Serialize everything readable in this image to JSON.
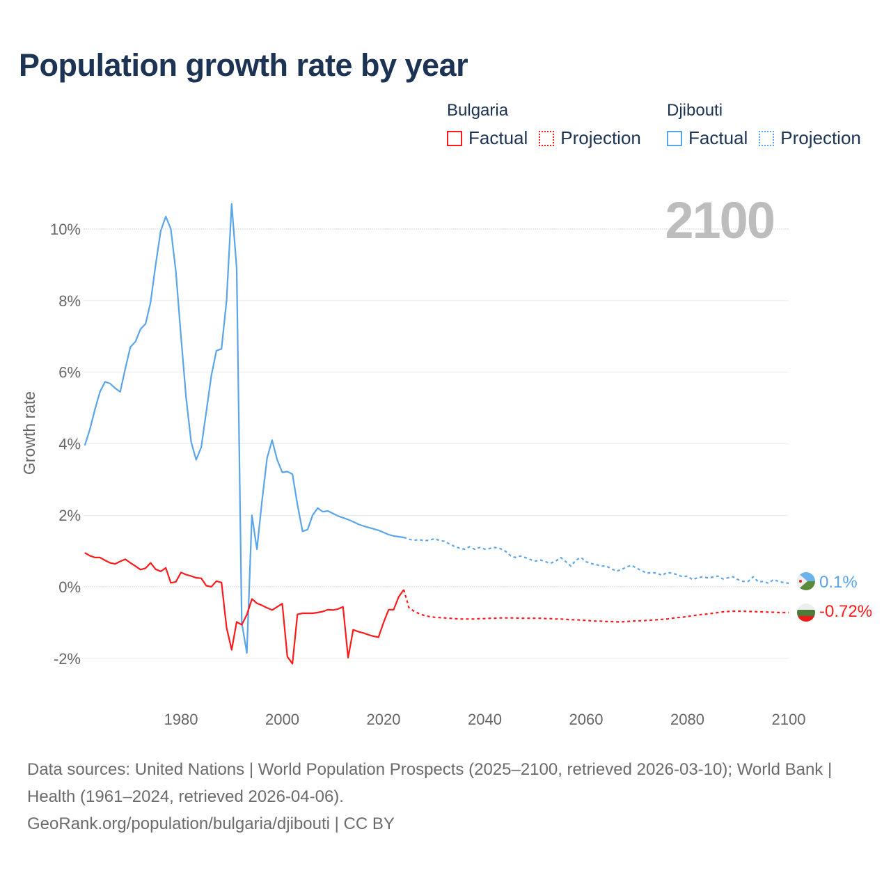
{
  "title": "Population growth rate by year",
  "legend": [
    {
      "country": "Bulgaria",
      "factual": "Factual",
      "projection": "Projection",
      "color": "#ff1a1a"
    },
    {
      "country": "Djibouti",
      "factual": "Factual",
      "projection": "Projection",
      "color": "#5aa5ea"
    }
  ],
  "footer": {
    "sources": "Data sources: United Nations | World Population Prospects (2025–2100, retrieved 2026-03-10); World Bank | Health (1961–2024, retrieved 2026-04-06).",
    "link": "GeoRank.org/population/bulgaria/djibouti | CC BY"
  },
  "chart_data": {
    "type": "line",
    "title": "Population growth rate by year",
    "ylabel": "Growth rate",
    "xlabel": "",
    "year_label": "2100",
    "xlim": [
      1960,
      2100
    ],
    "ylim": [
      -3.0,
      11.0
    ],
    "x_ticks": [
      1980,
      2000,
      2020,
      2040,
      2060,
      2080,
      2100
    ],
    "x_tick_labels": [
      "1980",
      "2000",
      "2020",
      "2040",
      "2060",
      "2080",
      "2100"
    ],
    "y_ticks": [
      -2,
      0,
      2,
      4,
      6,
      8,
      10
    ],
    "y_tick_labels": [
      "-2%",
      "0%",
      "2%",
      "4%",
      "6%",
      "8%",
      "10%"
    ],
    "grid": true,
    "legend_position": "top-right",
    "series": [
      {
        "name": "Djibouti",
        "color": "#5aa5ea",
        "end_label": "0.1%",
        "factual": {
          "x_start": 1961,
          "values": [
            3.95,
            4.4,
            4.95,
            5.45,
            5.73,
            5.68,
            5.55,
            5.45,
            6.1,
            6.7,
            6.85,
            7.2,
            7.35,
            7.95,
            9.0,
            9.95,
            10.35,
            10.0,
            8.8,
            7.0,
            5.3,
            4.05,
            3.55,
            3.9,
            4.9,
            5.9,
            6.6,
            6.65,
            8.0,
            10.7,
            8.9,
            -1.0,
            -1.85,
            2.0,
            1.05,
            2.4,
            3.6,
            4.1,
            3.55,
            3.2,
            3.22,
            3.15,
            2.3,
            1.55,
            1.6,
            2.0,
            2.2,
            2.1,
            2.12,
            2.05,
            1.98,
            1.93,
            1.88,
            1.82,
            1.75,
            1.7,
            1.66,
            1.62,
            1.58,
            1.52,
            1.46,
            1.42,
            1.4,
            1.38
          ]
        },
        "projection": {
          "x_start": 2024,
          "values": [
            1.38,
            1.33,
            1.3,
            1.32,
            1.29,
            1.3,
            1.34,
            1.3,
            1.27,
            1.2,
            1.13,
            1.08,
            1.05,
            1.12,
            1.05,
            1.1,
            1.05,
            1.07,
            1.1,
            1.07,
            1.0,
            0.88,
            0.82,
            0.86,
            0.82,
            0.76,
            0.72,
            0.75,
            0.7,
            0.66,
            0.72,
            0.82,
            0.7,
            0.58,
            0.75,
            0.82,
            0.7,
            0.65,
            0.62,
            0.58,
            0.58,
            0.5,
            0.44,
            0.48,
            0.56,
            0.6,
            0.52,
            0.45,
            0.38,
            0.4,
            0.38,
            0.32,
            0.4,
            0.38,
            0.34,
            0.28,
            0.3,
            0.2,
            0.25,
            0.28,
            0.25,
            0.27,
            0.3,
            0.22,
            0.25,
            0.28,
            0.2,
            0.15,
            0.15,
            0.28,
            0.14,
            0.15,
            0.1,
            0.2,
            0.15,
            0.12,
            0.1
          ]
        }
      },
      {
        "name": "Bulgaria",
        "color": "#ff1a1a",
        "end_label": "-0.72%",
        "factual": {
          "x_start": 1961,
          "values": [
            0.95,
            0.87,
            0.82,
            0.82,
            0.74,
            0.67,
            0.64,
            0.71,
            0.77,
            0.67,
            0.58,
            0.48,
            0.52,
            0.67,
            0.49,
            0.43,
            0.53,
            0.11,
            0.14,
            0.4,
            0.34,
            0.3,
            0.25,
            0.24,
            0.03,
            0.0,
            0.16,
            0.12,
            -1.14,
            -1.76,
            -0.98,
            -1.06,
            -0.78,
            -0.34,
            -0.46,
            -0.52,
            -0.59,
            -0.65,
            -0.56,
            -0.47,
            -1.95,
            -2.15,
            -0.77,
            -0.74,
            -0.74,
            -0.74,
            -0.72,
            -0.69,
            -0.64,
            -0.65,
            -0.62,
            -0.56,
            -1.98,
            -1.2,
            -1.25,
            -1.29,
            -1.34,
            -1.38,
            -1.41,
            -1.0,
            -0.64,
            -0.64,
            -0.28,
            -0.08
          ]
        },
        "projection": {
          "x_start": 2024,
          "values": [
            -0.08,
            -0.58,
            -0.68,
            -0.75,
            -0.8,
            -0.83,
            -0.85,
            -0.86,
            -0.87,
            -0.88,
            -0.89,
            -0.9,
            -0.9,
            -0.9,
            -0.9,
            -0.89,
            -0.89,
            -0.88,
            -0.88,
            -0.87,
            -0.87,
            -0.87,
            -0.87,
            -0.88,
            -0.88,
            -0.88,
            -0.88,
            -0.88,
            -0.89,
            -0.89,
            -0.9,
            -0.9,
            -0.91,
            -0.92,
            -0.92,
            -0.93,
            -0.94,
            -0.95,
            -0.96,
            -0.96,
            -0.97,
            -0.97,
            -0.98,
            -0.98,
            -0.97,
            -0.96,
            -0.95,
            -0.95,
            -0.94,
            -0.93,
            -0.92,
            -0.91,
            -0.9,
            -0.88,
            -0.86,
            -0.85,
            -0.83,
            -0.81,
            -0.79,
            -0.77,
            -0.76,
            -0.74,
            -0.72,
            -0.7,
            -0.69,
            -0.68,
            -0.68,
            -0.68,
            -0.69,
            -0.69,
            -0.7,
            -0.7,
            -0.71,
            -0.71,
            -0.72,
            -0.72,
            -0.72
          ]
        }
      }
    ]
  }
}
